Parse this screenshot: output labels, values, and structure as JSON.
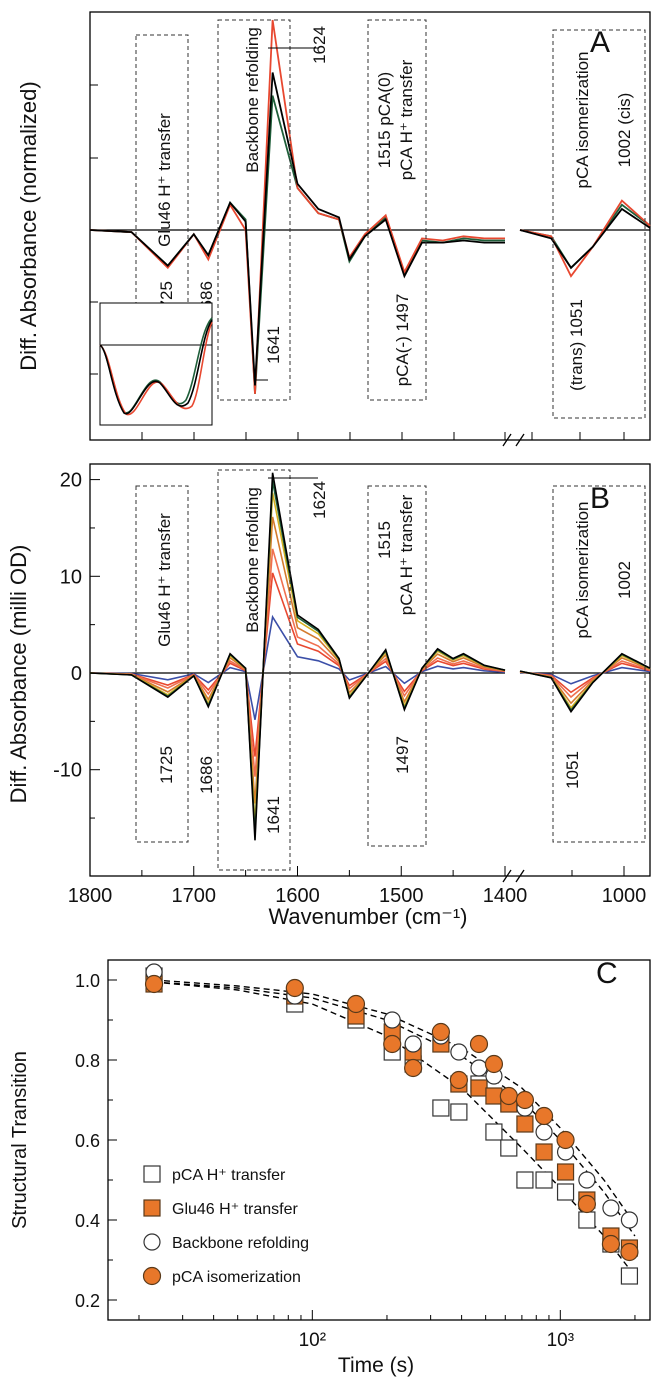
{
  "chart_data": [
    {
      "panel": "A",
      "type": "line",
      "ylabel": "Diff. Absorbance (normalized)",
      "panel_label": "A",
      "x_axis": "reversed, broken between 1400 and ~1100",
      "series": [
        {
          "color": "#1f5f3a",
          "points": [
            [
              1800,
              0
            ],
            [
              1760,
              -0.01
            ],
            [
              1725,
              -0.17
            ],
            [
              1700,
              -0.02
            ],
            [
              1686,
              -0.12
            ],
            [
              1665,
              0.13
            ],
            [
              1650,
              0.05
            ],
            [
              1641,
              -0.78
            ],
            [
              1624,
              0.64
            ],
            [
              1600,
              0.2
            ],
            [
              1580,
              0.08
            ],
            [
              1560,
              0.05
            ],
            [
              1550,
              -0.15
            ],
            [
              1535,
              -0.03
            ],
            [
              1515,
              0.06
            ],
            [
              1497,
              -0.21
            ],
            [
              1480,
              -0.05
            ],
            [
              1460,
              -0.06
            ],
            [
              1440,
              -0.04
            ],
            [
              1420,
              -0.05
            ],
            [
              1400,
              -0.05
            ],
            [
              1100,
              0.0
            ],
            [
              1070,
              -0.03
            ],
            [
              1051,
              -0.18
            ],
            [
              1030,
              -0.08
            ],
            [
              1002,
              0.12
            ],
            [
              975,
              0.02
            ]
          ]
        },
        {
          "color": "#e84830",
          "points": [
            [
              1800,
              0
            ],
            [
              1760,
              -0.01
            ],
            [
              1725,
              -0.18
            ],
            [
              1700,
              -0.02
            ],
            [
              1686,
              -0.14
            ],
            [
              1665,
              0.12
            ],
            [
              1650,
              0.0
            ],
            [
              1641,
              -0.78
            ],
            [
              1624,
              1.0
            ],
            [
              1600,
              0.2
            ],
            [
              1580,
              0.08
            ],
            [
              1560,
              0.05
            ],
            [
              1550,
              -0.13
            ],
            [
              1535,
              -0.02
            ],
            [
              1515,
              0.07
            ],
            [
              1497,
              -0.2
            ],
            [
              1480,
              -0.04
            ],
            [
              1460,
              -0.05
            ],
            [
              1440,
              -0.03
            ],
            [
              1420,
              -0.04
            ],
            [
              1400,
              -0.04
            ],
            [
              1100,
              0.0
            ],
            [
              1070,
              -0.03
            ],
            [
              1051,
              -0.22
            ],
            [
              1030,
              -0.08
            ],
            [
              1002,
              0.14
            ],
            [
              975,
              0.02
            ]
          ]
        },
        {
          "color": "#000000",
          "points": [
            [
              1800,
              0
            ],
            [
              1760,
              -0.01
            ],
            [
              1725,
              -0.17
            ],
            [
              1700,
              -0.02
            ],
            [
              1686,
              -0.12
            ],
            [
              1665,
              0.13
            ],
            [
              1650,
              0.04
            ],
            [
              1641,
              -0.74
            ],
            [
              1624,
              0.75
            ],
            [
              1600,
              0.22
            ],
            [
              1580,
              0.1
            ],
            [
              1560,
              0.06
            ],
            [
              1550,
              -0.14
            ],
            [
              1535,
              -0.03
            ],
            [
              1515,
              0.05
            ],
            [
              1497,
              -0.22
            ],
            [
              1480,
              -0.06
            ],
            [
              1460,
              -0.06
            ],
            [
              1440,
              -0.05
            ],
            [
              1420,
              -0.06
            ],
            [
              1400,
              -0.06
            ],
            [
              1100,
              0.0
            ],
            [
              1070,
              -0.04
            ],
            [
              1051,
              -0.18
            ],
            [
              1030,
              -0.08
            ],
            [
              1002,
              0.1
            ],
            [
              975,
              0.01
            ]
          ]
        }
      ],
      "boxes": [
        {
          "title": "Glu46 H⁺ transfer",
          "x0": 1758,
          "x1": 1705
        },
        {
          "title": "Backbone refolding",
          "x0": 1672,
          "x1": 1612
        },
        {
          "title": "1515 pCA(0)  pCA H⁺ transfer",
          "x0": 1525,
          "x1": 1478
        },
        {
          "title": "pCA isomerization  1002 (cis)",
          "x0": 1090,
          "x1": 975
        }
      ],
      "annotations": [
        "1624",
        "1725",
        "1686",
        "1641",
        "pCA(-) 1497",
        "(trans) 1051",
        "1002 (cis)",
        "1515 pCA(0)"
      ]
    },
    {
      "panel": "B",
      "type": "line",
      "ylabel": "Diff. Absorbance (milli OD)",
      "xlabel": "Wavenumber (cm⁻¹)",
      "panel_label": "B",
      "xticks_left": [
        "1800",
        "1700",
        "1600",
        "1500",
        "1400"
      ],
      "xticks_right": [
        "1000"
      ],
      "yticks": [
        "-10",
        "0",
        "10",
        "20"
      ],
      "ylim": [
        -18,
        22
      ],
      "series": [
        {
          "color": "#3b4fa8",
          "scale": 0.28
        },
        {
          "color": "#e84830",
          "scale": 0.5
        },
        {
          "color": "#f07050",
          "scale": 0.62
        },
        {
          "color": "#d47b2e",
          "scale": 0.78
        },
        {
          "color": "#d4b020",
          "scale": 0.9
        },
        {
          "color": "#1f5f3a",
          "scale": 0.96
        },
        {
          "color": "#000000",
          "scale": 1.0
        }
      ],
      "base_spectrum": [
        [
          1800,
          0
        ],
        [
          1760,
          -0.2
        ],
        [
          1725,
          -2.5
        ],
        [
          1700,
          -0.3
        ],
        [
          1686,
          -3.5
        ],
        [
          1665,
          2.0
        ],
        [
          1650,
          0.5
        ],
        [
          1641,
          -17.3
        ],
        [
          1624,
          20.7
        ],
        [
          1600,
          6.0
        ],
        [
          1580,
          4.5
        ],
        [
          1560,
          1.5
        ],
        [
          1550,
          -2.6
        ],
        [
          1535,
          -0.5
        ],
        [
          1515,
          2.4
        ],
        [
          1497,
          -3.8
        ],
        [
          1480,
          0.5
        ],
        [
          1465,
          2.5
        ],
        [
          1450,
          1.5
        ],
        [
          1440,
          2.0
        ],
        [
          1420,
          0.8
        ],
        [
          1400,
          0.3
        ],
        [
          1100,
          0.2
        ],
        [
          1070,
          -0.5
        ],
        [
          1051,
          -4.0
        ],
        [
          1030,
          -1.0
        ],
        [
          1002,
          2.0
        ],
        [
          975,
          0.5
        ]
      ],
      "annotations": [
        "1624",
        "1725",
        "1686",
        "1641",
        "1515",
        "1497",
        "1051",
        "1002"
      ],
      "boxes": [
        {
          "title": "Glu46  H⁺ transfer"
        },
        {
          "title": "Backbone refolding"
        },
        {
          "title": "pCA  H⁺ transfer"
        },
        {
          "title": "pCA isomerization"
        }
      ]
    },
    {
      "panel": "C",
      "type": "scatter",
      "panel_label": "C",
      "xlabel": "Time (s)",
      "ylabel": "Structural Transition",
      "x_scale": "log",
      "xlim": [
        15,
        2300
      ],
      "ylim": [
        0.15,
        1.05
      ],
      "yticks": [
        "0.2",
        "0.4",
        "0.6",
        "0.8",
        "1.0"
      ],
      "xtick_labels": [
        "10²",
        "10³"
      ],
      "series": [
        {
          "name": "pCA H⁺ transfer",
          "marker": "open-square",
          "x": [
            23,
            85,
            150,
            210,
            255,
            330,
            390,
            470,
            540,
            620,
            720,
            860,
            1050,
            1280,
            1600,
            1900
          ],
          "y": [
            1.01,
            0.94,
            0.9,
            0.82,
            0.79,
            0.68,
            0.67,
            0.74,
            0.62,
            0.58,
            0.5,
            0.5,
            0.47,
            0.4,
            0.34,
            0.26
          ]
        },
        {
          "name": "Glu46 H⁺ transfer",
          "marker": "filled-square",
          "x": [
            23,
            85,
            150,
            210,
            255,
            330,
            390,
            470,
            540,
            620,
            720,
            860,
            1050,
            1280,
            1600,
            1900
          ],
          "y": [
            0.99,
            0.96,
            0.91,
            0.87,
            0.82,
            0.84,
            0.74,
            0.73,
            0.71,
            0.69,
            0.64,
            0.57,
            0.52,
            0.45,
            0.36,
            0.33
          ]
        },
        {
          "name": "Backbone refolding",
          "marker": "open-circle",
          "x": [
            23,
            85,
            150,
            210,
            255,
            330,
            390,
            470,
            540,
            620,
            720,
            860,
            1050,
            1280,
            1600,
            1900
          ],
          "y": [
            1.02,
            0.96,
            0.94,
            0.9,
            0.84,
            0.86,
            0.82,
            0.78,
            0.76,
            0.71,
            0.68,
            0.62,
            0.57,
            0.5,
            0.43,
            0.4
          ]
        },
        {
          "name": "pCA isomerization",
          "marker": "filled-circle",
          "x": [
            23,
            85,
            150,
            210,
            255,
            330,
            390,
            470,
            540,
            620,
            720,
            860,
            1050,
            1280,
            1600,
            1900
          ],
          "y": [
            0.99,
            0.98,
            0.94,
            0.84,
            0.78,
            0.87,
            0.75,
            0.84,
            0.79,
            0.71,
            0.7,
            0.66,
            0.6,
            0.44,
            0.34,
            0.32
          ]
        }
      ],
      "fits": [
        {
          "style": "dashed",
          "points": [
            [
              23,
              0.995
            ],
            [
              50,
              0.975
            ],
            [
              100,
              0.94
            ],
            [
              200,
              0.86
            ],
            [
              400,
              0.73
            ],
            [
              700,
              0.58
            ],
            [
              1000,
              0.48
            ],
            [
              1500,
              0.36
            ],
            [
              2000,
              0.26
            ]
          ]
        },
        {
          "style": "dashed",
          "points": [
            [
              23,
              0.995
            ],
            [
              50,
              0.98
            ],
            [
              100,
              0.955
            ],
            [
              200,
              0.9
            ],
            [
              400,
              0.81
            ],
            [
              700,
              0.7
            ],
            [
              1000,
              0.6
            ],
            [
              1500,
              0.47
            ],
            [
              2000,
              0.36
            ]
          ]
        },
        {
          "style": "dashed",
          "points": [
            [
              23,
              1.0
            ],
            [
              50,
              0.985
            ],
            [
              100,
              0.965
            ],
            [
              200,
              0.915
            ],
            [
              400,
              0.83
            ],
            [
              700,
              0.73
            ],
            [
              1000,
              0.63
            ],
            [
              1500,
              0.5
            ],
            [
              2000,
              0.39
            ]
          ]
        }
      ],
      "colors": {
        "orange": "#e8772a",
        "edge": "#5a3a1a"
      }
    }
  ]
}
